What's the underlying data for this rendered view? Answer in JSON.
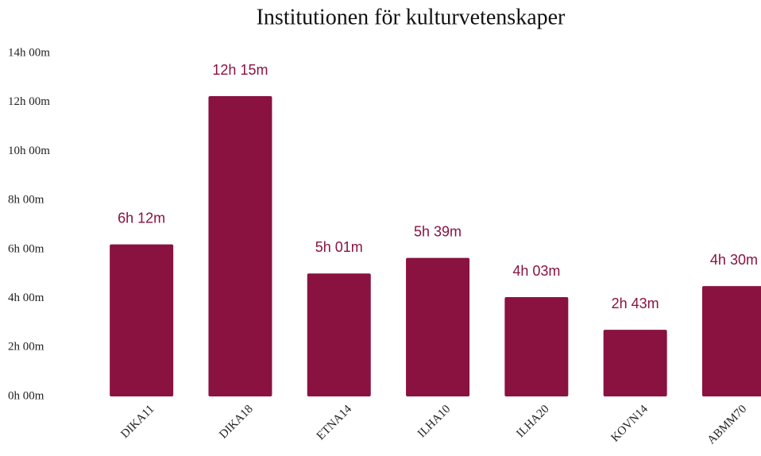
{
  "chart_data": {
    "type": "bar",
    "title": "Institutionen för kulturvetenskaper",
    "categories": [
      "DIKA11",
      "DIKA18",
      "ETNA14",
      "ILHA10",
      "ILHA20",
      "KOVN14",
      "ABMM70"
    ],
    "values": [
      372,
      735,
      301,
      339,
      243,
      163,
      270
    ],
    "value_labels": [
      "6h 12m",
      "12h 15m",
      "5h 01m",
      "5h 39m",
      "4h 03m",
      "2h 43m",
      "4h 30m"
    ],
    "color": "#8a1240",
    "ylim": [
      0,
      840
    ],
    "yticks": [
      {
        "value": 0,
        "label": "0h 00m"
      },
      {
        "value": 120,
        "label": "2h 00m"
      },
      {
        "value": 240,
        "label": "4h 00m"
      },
      {
        "value": 360,
        "label": "6h 00m"
      },
      {
        "value": 480,
        "label": "8h 00m"
      },
      {
        "value": 600,
        "label": "10h 00m"
      },
      {
        "value": 720,
        "label": "12h 00m"
      },
      {
        "value": 840,
        "label": "14h 00m"
      }
    ],
    "grid": false
  }
}
